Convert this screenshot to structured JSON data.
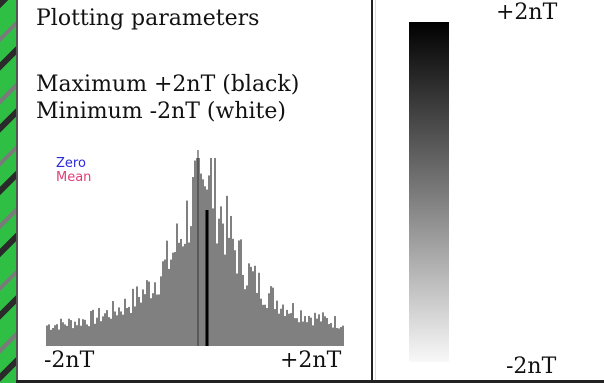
{
  "parameters": {
    "title": "Plotting parameters",
    "maximum_line": "Maximum +2nT (black)",
    "minimum_line": "Minimum -2nT (white)"
  },
  "histogram": {
    "legend": {
      "zero": "Zero",
      "mean": "Mean"
    },
    "axis_min_label": "-2nT",
    "axis_max_label": "+2nT",
    "bar_color": "#808080",
    "zero_line_color": "#2a2ae0",
    "mean_line_color": "#e0407a"
  },
  "scale": {
    "top_label": "+2nT",
    "bottom_label": "-2nT",
    "top_color": "#000000",
    "bottom_color": "#f8f8f8"
  },
  "decoration": {
    "strip_colors": [
      "#2fbf45",
      "#2a2a2a"
    ]
  }
}
